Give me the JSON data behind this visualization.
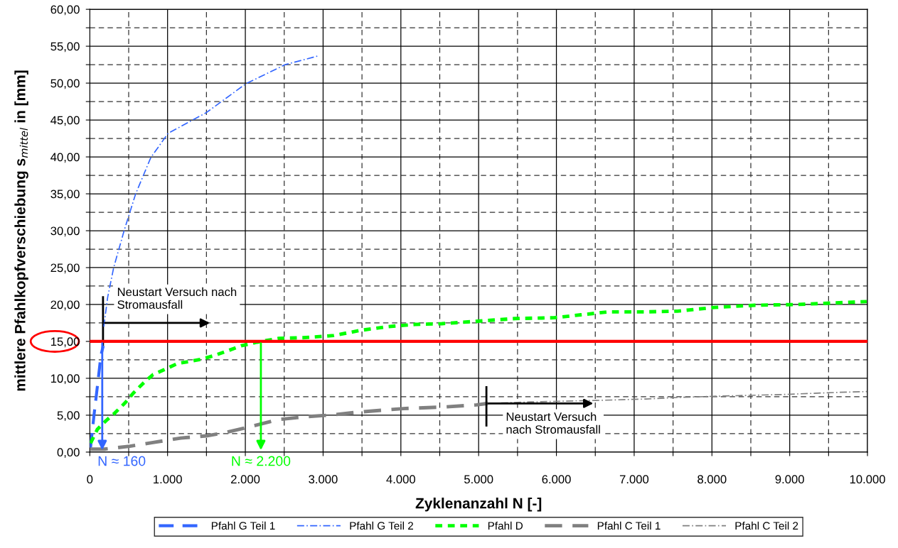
{
  "chart_data": {
    "type": "line",
    "xlabel": "Zyklenanzahl N [-]",
    "ylabel": "mittlere Pfahlkopfverschiebung s$_{mittel}$ in [mm]",
    "xlim": [
      0,
      10000
    ],
    "ylim": [
      0,
      60
    ],
    "xticks": [
      {
        "value": 0,
        "label": "0"
      },
      {
        "value": 500,
        "label": null
      },
      {
        "value": 1000,
        "label": "1.000"
      },
      {
        "value": 1500,
        "label": null
      },
      {
        "value": 2000,
        "label": "2.000"
      },
      {
        "value": 2500,
        "label": null
      },
      {
        "value": 3000,
        "label": "3.000"
      },
      {
        "value": 3500,
        "label": null
      },
      {
        "value": 4000,
        "label": "4.000"
      },
      {
        "value": 4500,
        "label": null
      },
      {
        "value": 5000,
        "label": "5.000"
      },
      {
        "value": 5500,
        "label": null
      },
      {
        "value": 6000,
        "label": "6.000"
      },
      {
        "value": 6500,
        "label": null
      },
      {
        "value": 7000,
        "label": "7.000"
      },
      {
        "value": 7500,
        "label": null
      },
      {
        "value": 8000,
        "label": "8.000"
      },
      {
        "value": 8500,
        "label": null
      },
      {
        "value": 9000,
        "label": "9.000"
      },
      {
        "value": 9500,
        "label": null
      },
      {
        "value": 10000,
        "label": "10.000"
      }
    ],
    "yticks": [
      {
        "value": 0,
        "label": "0,00"
      },
      {
        "value": 2.5,
        "label": null
      },
      {
        "value": 5,
        "label": "5,00"
      },
      {
        "value": 7.5,
        "label": null
      },
      {
        "value": 10,
        "label": "10,00"
      },
      {
        "value": 12.5,
        "label": null
      },
      {
        "value": 15,
        "label": "15,00"
      },
      {
        "value": 17.5,
        "label": null
      },
      {
        "value": 20,
        "label": "20,00"
      },
      {
        "value": 22.5,
        "label": null
      },
      {
        "value": 25,
        "label": "25,00"
      },
      {
        "value": 27.5,
        "label": null
      },
      {
        "value": 30,
        "label": "30,00"
      },
      {
        "value": 32.5,
        "label": null
      },
      {
        "value": 35,
        "label": "35,00"
      },
      {
        "value": 37.5,
        "label": null
      },
      {
        "value": 40,
        "label": "40,00"
      },
      {
        "value": 42.5,
        "label": null
      },
      {
        "value": 45,
        "label": "45,00"
      },
      {
        "value": 47.5,
        "label": null
      },
      {
        "value": 50,
        "label": "50,00"
      },
      {
        "value": 52.5,
        "label": null
      },
      {
        "value": 55,
        "label": "55,00"
      },
      {
        "value": 57.5,
        "label": null
      },
      {
        "value": 60,
        "label": "60,00"
      }
    ],
    "grid": true,
    "legend": "bottom",
    "marker": "none",
    "series": [
      {
        "name": "Pfahl G Teil 1",
        "color": "#3366ff",
        "line_style": "dashed",
        "x": [
          9,
          54,
          113,
          143,
          173
        ],
        "values": [
          0.6,
          5.0,
          10.3,
          13.1,
          14.4
        ]
      },
      {
        "name": "Pfahl G Teil 2",
        "color": "#3366ff",
        "line_style": "dashed",
        "x": [
          180,
          230,
          307,
          441,
          590,
          784,
          1007,
          1498,
          2005,
          2511,
          2943
        ],
        "values": [
          17.0,
          21.0,
          25.0,
          30.0,
          35.0,
          39.9,
          43.2,
          46.0,
          49.9,
          52.5,
          53.7
        ]
      },
      {
        "name": "Pfahl D",
        "color": "#00ff00",
        "line_style": "dotted",
        "x": [
          9,
          98,
          203,
          322,
          456,
          560,
          694,
          813,
          962,
          1126,
          1290,
          1439,
          1603,
          1767,
          1945,
          2154,
          2422,
          2740,
          3137,
          3484,
          3832,
          4180,
          4527,
          5073,
          5469,
          5967,
          6314,
          6662,
          7159,
          7556,
          8027,
          8549,
          9095,
          9990
        ],
        "values": [
          1.2,
          3.1,
          4.2,
          5.3,
          6.7,
          8.0,
          9.4,
          10.5,
          11.2,
          12.0,
          12.3,
          12.6,
          13.1,
          13.7,
          14.4,
          14.9,
          15.4,
          15.5,
          15.8,
          16.5,
          17.0,
          17.3,
          17.4,
          17.8,
          18.1,
          18.2,
          18.6,
          19.0,
          19.0,
          19.1,
          19.6,
          19.9,
          20.0,
          20.4
        ]
      },
      {
        "name": "Pfahl C Teil 1",
        "color": "#808080",
        "line_style": "dashed",
        "x": [
          9,
          188,
          515,
          813,
          1171,
          1499,
          1767,
          2124,
          2422,
          2779,
          3077,
          3434,
          4030,
          4527,
          4974,
          5120
        ],
        "values": [
          0.4,
          0.4,
          0.8,
          1.3,
          1.9,
          2.2,
          2.7,
          3.6,
          4.4,
          4.8,
          5.0,
          5.4,
          5.9,
          6.1,
          6.4,
          6.6
        ]
      },
      {
        "name": "Pfahl C Teil 2",
        "color": "#808080",
        "line_style": "dashed",
        "x": [
          5120,
          5668,
          6512,
          7159,
          7556,
          8150,
          8894,
          9642,
          9990
        ],
        "values": [
          6.6,
          6.8,
          7.0,
          7.2,
          7.4,
          7.6,
          7.8,
          8.1,
          8.2
        ]
      }
    ],
    "ref_lines": [
      {
        "axis": "y",
        "value": 15,
        "label": null,
        "color": "#ff0000",
        "line_style": "solid"
      }
    ],
    "annotations": [
      {
        "text": "Neustart Versuch nach\nStromausfall",
        "x": 170,
        "y": 17.5
      },
      {
        "text": "Neustart Versuch\nnach Stromausfall",
        "x": 5100,
        "y": 6.6
      },
      {
        "text": "N ≈ 160",
        "x": 160,
        "y": 15
      },
      {
        "text": "N ≈ 2.200",
        "x": 2200,
        "y": 15
      }
    ]
  }
}
